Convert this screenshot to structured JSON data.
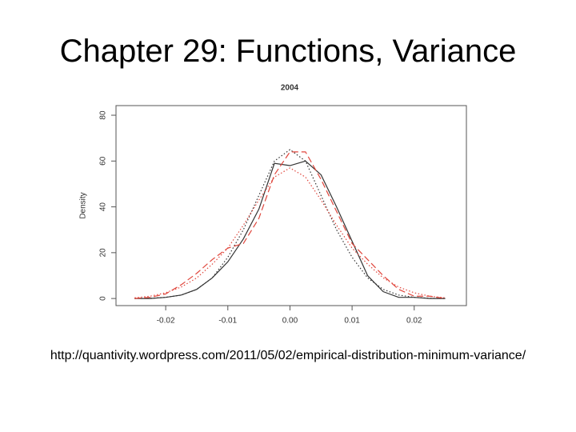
{
  "title": "Chapter 29: Functions, Variance",
  "source": "http://quantivity.wordpress.com/2011/05/02/empirical-distribution-minimum-variance/",
  "chart_data": {
    "type": "line",
    "title": "2004",
    "ylabel": "Density",
    "x": [
      -0.025,
      -0.0225,
      -0.02,
      -0.0175,
      -0.015,
      -0.0125,
      -0.01,
      -0.0075,
      -0.005,
      -0.0025,
      0,
      0.0025,
      0.005,
      0.0075,
      0.01,
      0.0125,
      0.015,
      0.0175,
      0.02,
      0.0225,
      0.025
    ],
    "series": [
      {
        "color": "#333333",
        "style": "solid",
        "values": [
          0,
          0,
          0.5,
          1.5,
          4,
          9,
          16,
          26,
          39,
          59,
          58,
          60,
          54,
          40,
          25,
          10,
          3,
          0.5,
          0.5,
          0,
          0
        ]
      },
      {
        "color": "#333333",
        "style": "dotted",
        "values": [
          0,
          0.1,
          0.5,
          1.5,
          4,
          9,
          18,
          30,
          45,
          60,
          65,
          60,
          45,
          30,
          18,
          9,
          4,
          1.5,
          0.5,
          0.1,
          0
        ]
      },
      {
        "color": "#e0463c",
        "style": "dashed",
        "values": [
          0,
          0.5,
          2,
          6,
          11,
          17,
          22,
          24,
          35,
          54,
          64,
          64,
          52,
          38,
          24,
          17,
          10,
          4,
          1,
          1,
          0
        ]
      },
      {
        "color": "#e0463c",
        "style": "dotted",
        "values": [
          0.3,
          1,
          2.5,
          5,
          9,
          15,
          22,
          32,
          43,
          53,
          57,
          53,
          43,
          32,
          22,
          15,
          9,
          5,
          2.5,
          1,
          0.3
        ]
      }
    ],
    "xlim": [
      -0.028,
      0.0284
    ],
    "ylim": [
      -3.1,
      84.2
    ],
    "xticks": [
      -0.02,
      -0.01,
      {
        "value": 0,
        "label": "0.00"
      },
      0.01,
      0.02
    ],
    "yticks": [
      0,
      20,
      40,
      60,
      80
    ]
  }
}
